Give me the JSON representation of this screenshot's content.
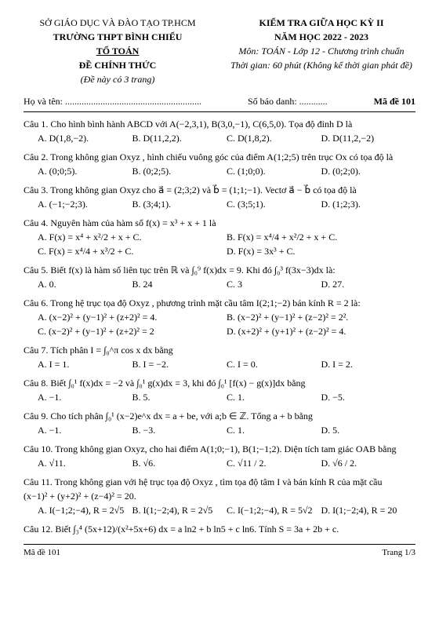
{
  "header": {
    "dept": "SỞ GIÁO DỤC VÀ ĐÀO TẠO TP.HCM",
    "school": "TRƯỜNG THPT BÌNH CHIỂU",
    "group": "TỔ TOÁN",
    "official": "ĐỀ CHÍNH THỨC",
    "pages": "(Đề này có 3 trang)",
    "exam_title": "KIỂM TRA GIỮA HỌC KỲ II",
    "year": "NĂM HỌC 2022 - 2023",
    "subject": "Môn: TOÁN - Lớp 12 - Chương trình chuẩn",
    "duration": "Thời gian: 60 phút (Không kể thời gian phát đề)"
  },
  "student": {
    "name_label": "Họ và tên: ..........................................................",
    "id_label": "Số báo danh:",
    "dots": "............",
    "code_label": "Mã đề 101"
  },
  "q1": {
    "stem": "Câu 1. Cho hình bình hành ABCD với A(−2,3,1), B(3,0,−1), C(6,5,0). Tọa độ đỉnh D là",
    "a": "A. D(1,8,−2).",
    "b": "B. D(11,2,2).",
    "c": "C. D(1,8,2).",
    "d": "D. D(11,2,−2)"
  },
  "q2": {
    "stem": "Câu 2. Trong không gian Oxyz , hình chiếu vuông góc của điểm A(1;2;5) trên trục Ox có tọa độ là",
    "a": "A. (0;0;5).",
    "b": "B. (0;2;5).",
    "c": "C. (1;0;0).",
    "d": "D. (0;2;0)."
  },
  "q3": {
    "stem": "Câu 3. Trong không gian Oxyz cho a⃗ = (2;3;2) và b⃗ = (1;1;−1). Vectơ a⃗ − b⃗ có tọa độ là",
    "a": "A. (−1;−2;3).",
    "b": "B. (3;4;1).",
    "c": "C. (3;5;1).",
    "d": "D. (1;2;3)."
  },
  "q4": {
    "stem": "Câu 4. Nguyên hàm của hàm số f(x) = x³ + x + 1 là",
    "a": "A. F(x) = x⁴ + x²/2 + x + C.",
    "b": "B. F(x) = x⁴/4 + x²/2 + x + C.",
    "c": "C. F(x) = x⁴/4 + x³/2 + C.",
    "d": "D. F(x) = 3x³ + C."
  },
  "q5": {
    "stem": "Câu 5. Biết f(x) là hàm số liên tục trên ℝ và ∫₀⁹ f(x)dx = 9. Khi đó ∫₀³ f(3x−3)dx là:",
    "a": "A. 0.",
    "b": "B. 24",
    "c": "C. 3",
    "d": "D. 27."
  },
  "q6": {
    "stem": "Câu 6. Trong hệ trục tọa độ Oxyz , phương trình mặt cầu tâm I(2;1;−2) bán kính R = 2 là:",
    "a": "A. (x−2)² + (y−1)² + (z+2)² = 4.",
    "b": "B. (x−2)² + (y−1)² + (z−2)² = 2².",
    "c": "C. (x−2)² + (y−1)² + (z+2)² = 2",
    "d": "D. (x+2)² + (y+1)² + (z−2)² = 4."
  },
  "q7": {
    "stem": "Câu 7. Tích phân I = ∫₀^π cos x dx bằng",
    "a": "A. I = 1.",
    "b": "B. I = −2.",
    "c": "C. I = 0.",
    "d": "D. I = 2."
  },
  "q8": {
    "stem": "Câu 8. Biết ∫₀¹ f(x)dx = −2 và ∫₀¹ g(x)dx = 3, khi đó ∫₀¹ [f(x) − g(x)]dx bằng",
    "a": "A. −1.",
    "b": "B. 5.",
    "c": "C. 1.",
    "d": "D. −5."
  },
  "q9": {
    "stem": "Câu 9. Cho tích phân ∫₀¹ (x−2)e^x dx = a + be, với a;b ∈ ℤ. Tổng a + b bằng",
    "a": "A. −1.",
    "b": "B. −3.",
    "c": "C. 1.",
    "d": "D. 5."
  },
  "q10": {
    "stem": "Câu 10. Trong không gian Oxyz, cho hai điểm A(1;0;−1), B(1;−1;2). Diện tích tam giác OAB bằng",
    "a": "A. √11.",
    "b": "B. √6.",
    "c": "C. √11 / 2.",
    "d": "D. √6 / 2."
  },
  "q11": {
    "stem": "Câu 11. Trong không gian với hệ trục tọa độ Oxyz , tìm tọa độ tâm I và bán kính R của mặt cầu",
    "eq": "(x−1)² + (y+2)² + (z−4)² = 20.",
    "a": "A. I(−1;2;−4), R = 2√5",
    "b": "B. I(1;−2;4), R = 2√5",
    "c": "C. I(−1;2;−4), R = 5√2",
    "d": "D. I(1;−2;4), R = 20"
  },
  "q12": {
    "stem": "Câu 12. Biết ∫₃⁴ (5x+12)/(x²+5x+6) dx = a ln2 + b ln5 + c ln6. Tính S = 3a + 2b + c."
  },
  "footer": {
    "left": "Mã đề 101",
    "right": "Trang 1/3"
  }
}
